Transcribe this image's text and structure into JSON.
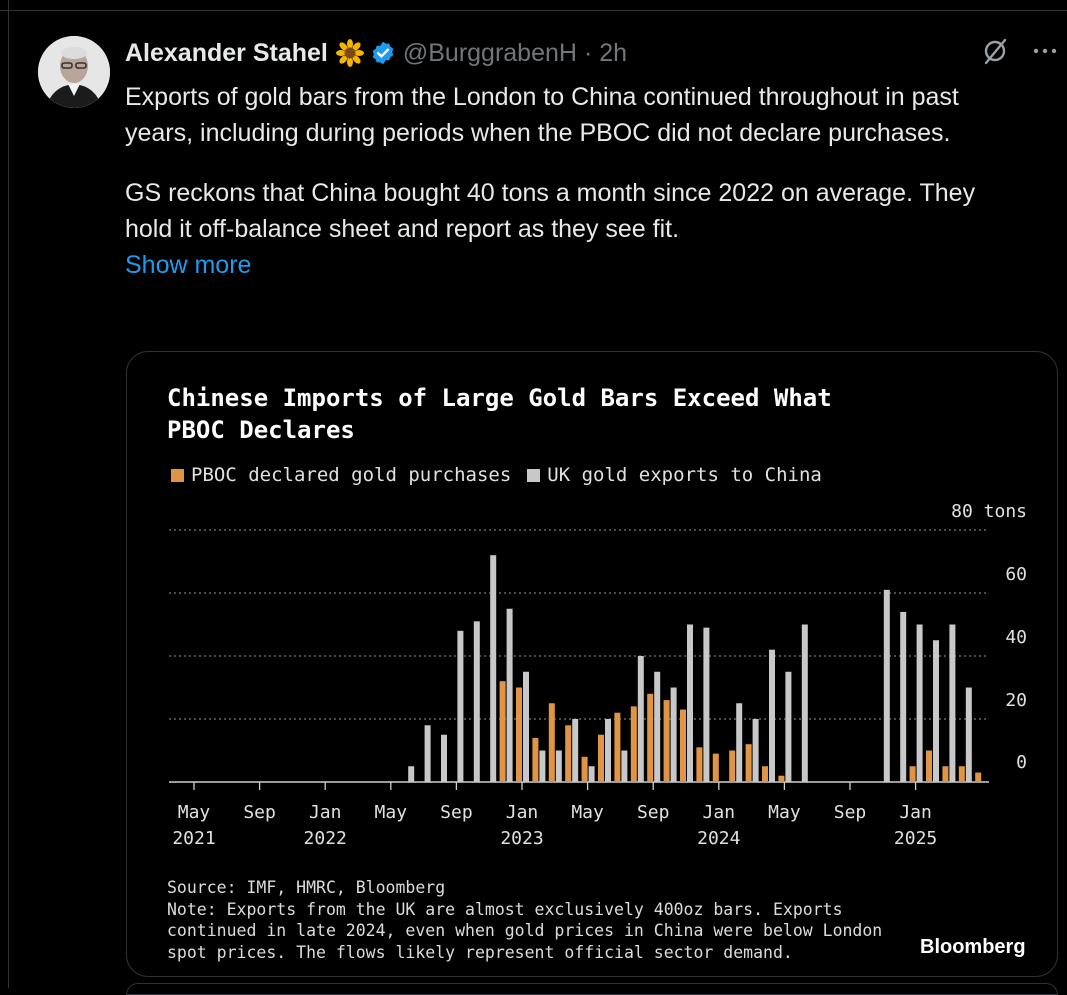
{
  "tweet": {
    "author_name": "Alexander Stahel",
    "name_emoji": "sunflower-icon",
    "handle": "@BurggrabenH",
    "separator": "·",
    "time": "2h",
    "text_lines": [
      "Exports of gold bars from the London to China continued throughout in past years, including during periods when the PBOC did not declare purchases.",
      "GS reckons that China bought 40 tons a month since 2022 on average. They hold it off-balance sheet and report as they see fit."
    ],
    "show_more": "Show more"
  },
  "colors": {
    "accent_blue": "#1d9bf0",
    "pboc_orange": "#e09545",
    "uk_gray": "#c8c8c8"
  },
  "chart_data": {
    "type": "bar",
    "title": "Chinese Imports of Large Gold Bars Exceed What PBOC Declares",
    "series": [
      {
        "name": "PBOC declared gold purchases",
        "values": [
          0,
          0,
          0,
          0,
          0,
          0,
          0,
          0,
          0,
          0,
          0,
          0,
          0,
          0,
          0,
          0,
          0,
          0,
          0,
          32,
          30,
          14,
          25,
          18,
          8,
          15,
          22,
          24,
          28,
          26,
          23,
          11,
          9,
          10,
          12,
          5,
          2,
          0,
          0,
          0,
          0,
          0,
          0,
          0,
          5,
          10,
          5,
          5,
          3
        ]
      },
      {
        "name": "UK gold exports to China",
        "values": [
          0,
          0,
          0,
          0,
          0,
          0,
          0,
          0,
          0,
          0,
          0,
          0,
          0,
          5,
          18,
          15,
          48,
          51,
          72,
          55,
          35,
          10,
          10,
          20,
          5,
          20,
          10,
          40,
          35,
          30,
          50,
          49,
          0,
          25,
          20,
          42,
          35,
          50,
          0,
          0,
          0,
          0,
          61,
          54,
          50,
          45,
          50,
          30,
          0
        ]
      }
    ],
    "x_ticks": [
      {
        "month": "May",
        "year": "2021"
      },
      {
        "month": "Sep",
        "year": ""
      },
      {
        "month": "Jan",
        "year": "2022"
      },
      {
        "month": "May",
        "year": ""
      },
      {
        "month": "Sep",
        "year": ""
      },
      {
        "month": "Jan",
        "year": "2023"
      },
      {
        "month": "May",
        "year": ""
      },
      {
        "month": "Sep",
        "year": ""
      },
      {
        "month": "Jan",
        "year": "2024"
      },
      {
        "month": "May",
        "year": ""
      },
      {
        "month": "Sep",
        "year": ""
      },
      {
        "month": "Jan",
        "year": "2025"
      }
    ],
    "x_start": "2021-05",
    "x_end": "2025-05",
    "y_ticks": [
      "0",
      "20",
      "40",
      "60",
      "80 tons"
    ],
    "ylim": [
      0,
      80
    ],
    "ylabel_unit": "tons",
    "grid": true,
    "legend_position": "top-left",
    "source": "Source: IMF, HMRC, Bloomberg",
    "note_lines": [
      "Note: Exports from the UK are almost exclusively 400oz bars. Exports",
      "continued in late 2024, even when gold prices in China were below London",
      "spot prices. The flows likely represent official sector demand."
    ],
    "brand": "Bloomberg"
  }
}
